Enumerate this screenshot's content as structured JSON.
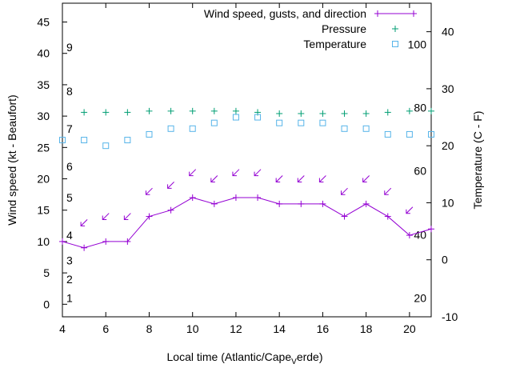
{
  "chart_data": {
    "type": "line",
    "xlabel": "Local time (Atlantic/Cape",
    "xlabel_sub": "V",
    "xlabel_tail": "erde)",
    "ylabel": "Wind speed (kt - Beaufort)",
    "y2label": "Temperature (C - F)",
    "xlim": [
      4,
      21
    ],
    "ylim": [
      -2,
      48
    ],
    "y2lim": [
      -10,
      45
    ],
    "x_ticks": [
      4,
      6,
      8,
      10,
      12,
      14,
      16,
      18,
      20
    ],
    "y_ticks": [
      0,
      5,
      10,
      15,
      20,
      25,
      30,
      35,
      40,
      45
    ],
    "y2_ticks": [
      -10,
      0,
      10,
      20,
      30,
      40
    ],
    "beaufort_labels": [
      {
        "text": "1",
        "y": 1
      },
      {
        "text": "2",
        "y": 4
      },
      {
        "text": "3",
        "y": 7
      },
      {
        "text": "4",
        "y": 11
      },
      {
        "text": "5",
        "y": 17
      },
      {
        "text": "6",
        "y": 22
      },
      {
        "text": "7",
        "y": 28
      },
      {
        "text": "8",
        "y": 34
      },
      {
        "text": "9",
        "y": 41
      }
    ],
    "fahrenheit_labels": [
      {
        "text": "20",
        "y2": -6.7
      },
      {
        "text": "40",
        "y2": 4.4
      },
      {
        "text": "60",
        "y2": 15.6
      },
      {
        "text": "80",
        "y2": 26.7
      },
      {
        "text": "100",
        "y2": 37.8
      }
    ],
    "legend": [
      "Wind speed, gusts, and direction",
      "Pressure",
      "Temperature"
    ],
    "legend_position": "top-right",
    "series": [
      {
        "name": "Wind speed, gusts, and direction",
        "color": "#9400d3",
        "x": [
          4,
          5,
          6,
          7,
          8,
          9,
          10,
          11,
          12,
          13,
          14,
          15,
          16,
          17,
          18,
          19,
          20,
          21
        ],
        "values": [
          10,
          9,
          10,
          10,
          14,
          15,
          17,
          16,
          17,
          17,
          16,
          16,
          16,
          14,
          16,
          14,
          11,
          12
        ]
      },
      {
        "name": "wind direction arrows",
        "color": "#9400d3",
        "x": [
          5,
          6,
          7,
          8,
          9,
          10,
          11,
          12,
          13,
          14,
          15,
          16,
          17,
          18,
          19,
          20
        ],
        "values": [
          13,
          14,
          14,
          18,
          19,
          21,
          20,
          21,
          21,
          20,
          20,
          20,
          18,
          20,
          18,
          15
        ]
      },
      {
        "name": "Pressure",
        "color": "#009e73",
        "x": [
          5,
          6,
          7,
          8,
          9,
          10,
          11,
          12,
          13,
          14,
          15,
          16,
          17,
          18,
          19,
          20,
          21
        ],
        "values": [
          30.6,
          30.6,
          30.6,
          30.8,
          30.8,
          30.8,
          30.8,
          30.8,
          30.6,
          30.4,
          30.4,
          30.4,
          30.4,
          30.4,
          30.6,
          30.8,
          30.8
        ]
      },
      {
        "name": "Temperature",
        "color": "#56b4e9",
        "axis": "y2",
        "x": [
          4,
          5,
          6,
          7,
          8,
          9,
          10,
          11,
          12,
          13,
          14,
          15,
          16,
          17,
          18,
          19,
          20,
          21
        ],
        "values": [
          21,
          21,
          20,
          21,
          22,
          23,
          23,
          24,
          25,
          25,
          24,
          24,
          24,
          23,
          23,
          22,
          22,
          22
        ]
      }
    ]
  }
}
